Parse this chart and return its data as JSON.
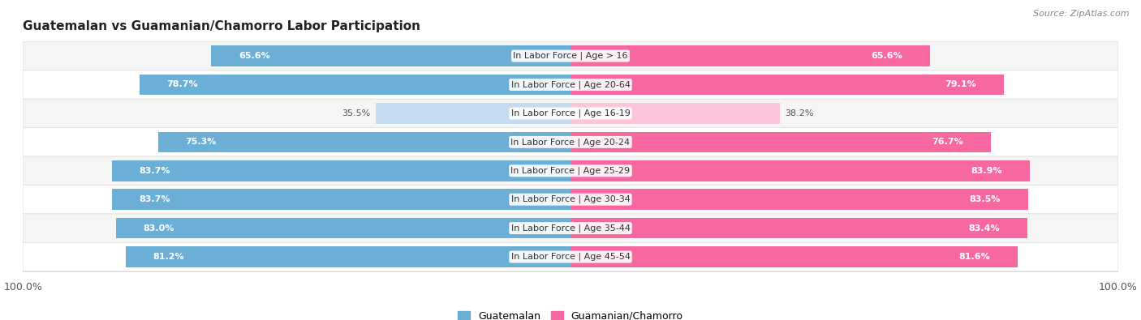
{
  "title": "Guatemalan vs Guamanian/Chamorro Labor Participation",
  "source": "Source: ZipAtlas.com",
  "categories": [
    "In Labor Force | Age > 16",
    "In Labor Force | Age 20-64",
    "In Labor Force | Age 16-19",
    "In Labor Force | Age 20-24",
    "In Labor Force | Age 25-29",
    "In Labor Force | Age 30-34",
    "In Labor Force | Age 35-44",
    "In Labor Force | Age 45-54"
  ],
  "guatemalan_values": [
    65.6,
    78.7,
    35.5,
    75.3,
    83.7,
    83.7,
    83.0,
    81.2
  ],
  "guamanian_values": [
    65.6,
    79.1,
    38.2,
    76.7,
    83.9,
    83.5,
    83.4,
    81.6
  ],
  "guatemalan_color": "#6baed6",
  "guamanian_color": "#f768a1",
  "guatemalan_light_color": "#c6dbef",
  "guamanian_light_color": "#fcc5dc",
  "max_value": 100.0,
  "background_color": "#ffffff",
  "row_colors": [
    "#f5f5f5",
    "#ffffff"
  ],
  "legend_guatemalan": "Guatemalan",
  "legend_guamanian": "Guamanian/Chamorro",
  "value_threshold": 50
}
